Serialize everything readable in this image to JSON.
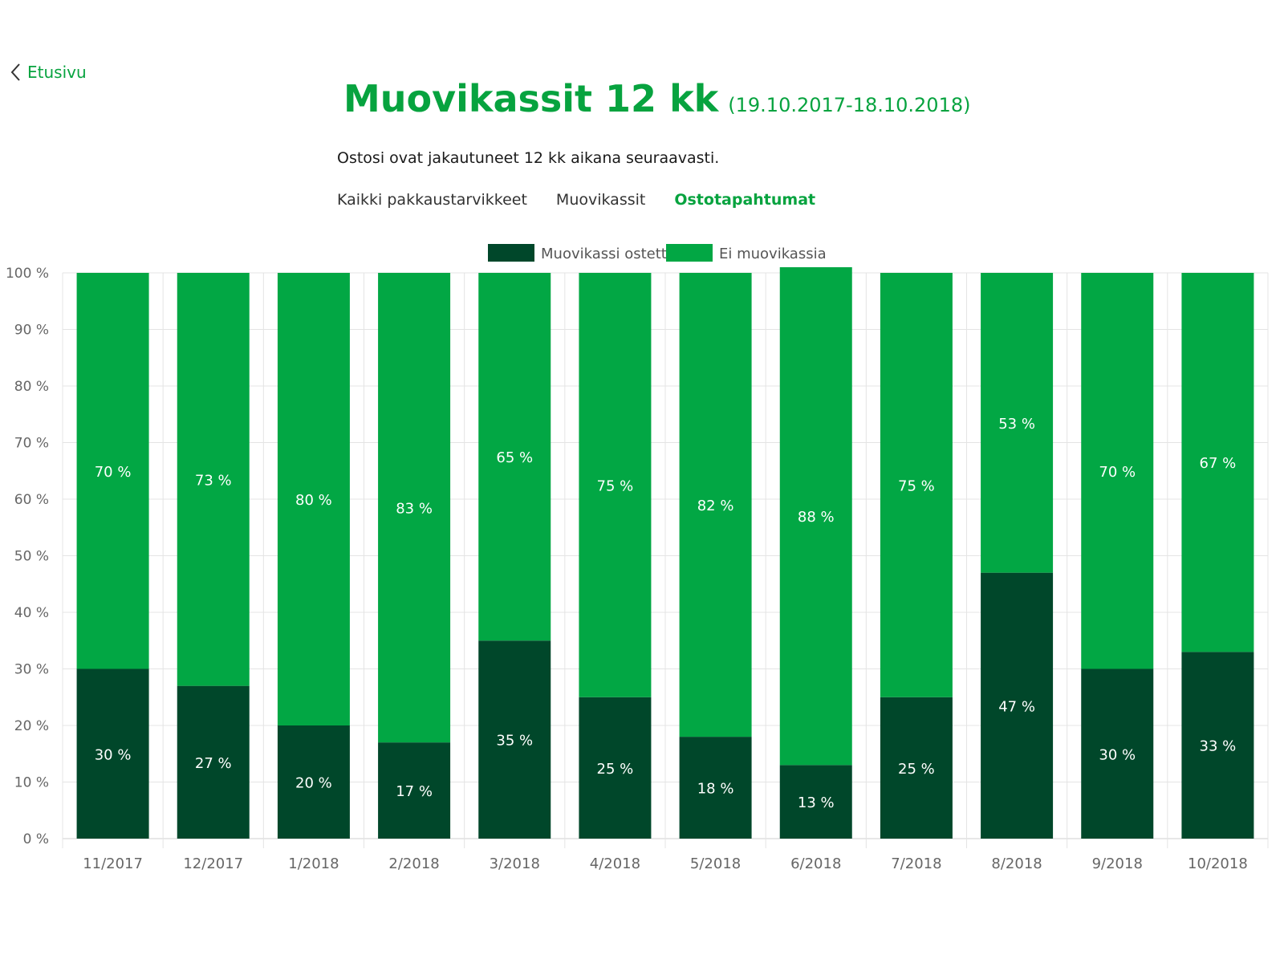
{
  "back": {
    "label": "Etusivu"
  },
  "header": {
    "title": "Muovikassit 12 kk",
    "range": "(19.10.2017-18.10.2018)"
  },
  "subtitle": "Ostosi ovat jakautuneet 12 kk aikana seuraavasti.",
  "tabs": [
    {
      "label": "Kaikki pakkaustarvikkeet",
      "active": false
    },
    {
      "label": "Muovikassit",
      "active": false
    },
    {
      "label": "Ostotapahtumat",
      "active": true
    }
  ],
  "colors": {
    "accent": "#07a33f",
    "bought": "#00472a",
    "not_bought": "#02a744"
  },
  "chart_data": {
    "type": "bar",
    "stacked": true,
    "categories": [
      "11/2017",
      "12/2017",
      "1/2018",
      "2/2018",
      "3/2018",
      "4/2018",
      "5/2018",
      "6/2018",
      "7/2018",
      "8/2018",
      "9/2018",
      "10/2018"
    ],
    "series": [
      {
        "name": "Muovikassi ostettu",
        "values": [
          30,
          27,
          20,
          17,
          35,
          25,
          18,
          13,
          25,
          47,
          30,
          33
        ],
        "labels": [
          "30 %",
          "27 %",
          "20 %",
          "17 %",
          "35 %",
          "25 %",
          "18 %",
          "13 %",
          "25 %",
          "47 %",
          "30 %",
          "33 %"
        ],
        "color": "#00472a"
      },
      {
        "name": "Ei muovikassia",
        "values": [
          70,
          73,
          80,
          83,
          65,
          75,
          82,
          88,
          75,
          53,
          70,
          67
        ],
        "labels": [
          "70 %",
          "73 %",
          "80 %",
          "83 %",
          "65 %",
          "75 %",
          "82 %",
          "88 %",
          "75 %",
          "53 %",
          "70 %",
          "67 %"
        ],
        "color": "#02a744"
      }
    ],
    "yticks": [
      "0 %",
      "10 %",
      "20 %",
      "30 %",
      "40 %",
      "50 %",
      "60 %",
      "70 %",
      "80 %",
      "90 %",
      "100 %"
    ],
    "ylim": [
      0,
      100
    ],
    "grid": true,
    "legend": "top-center"
  }
}
